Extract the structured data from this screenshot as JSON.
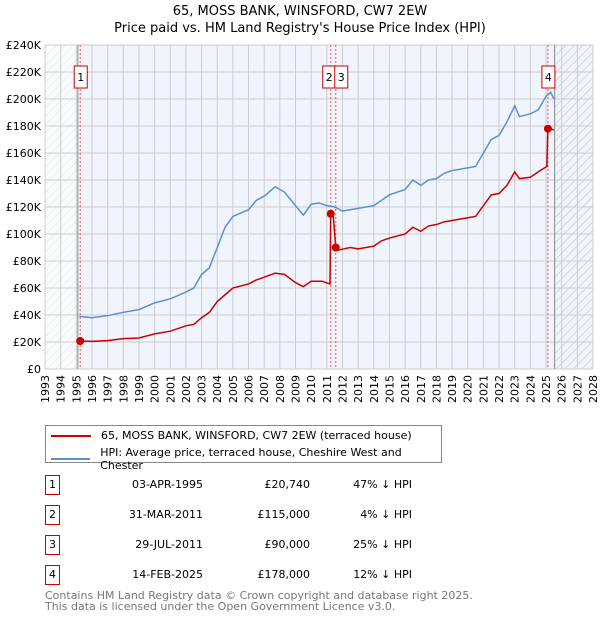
{
  "chart_data": {
    "type": "line",
    "title": "65, MOSS BANK, WINSFORD, CW7 2EW",
    "subtitle": "Price paid vs. HM Land Registry's House Price Index (HPI)",
    "xlim": [
      1993,
      2028
    ],
    "ylim": [
      0,
      240000
    ],
    "x_ticks": [
      "1993",
      "1994",
      "1995",
      "1996",
      "1997",
      "1998",
      "1999",
      "2000",
      "2001",
      "2002",
      "2003",
      "2004",
      "2005",
      "2006",
      "2007",
      "2008",
      "2009",
      "2010",
      "2011",
      "2012",
      "2013",
      "2014",
      "2015",
      "2016",
      "2017",
      "2018",
      "2019",
      "2020",
      "2021",
      "2022",
      "2023",
      "2024",
      "2025",
      "2026",
      "2027",
      "2028"
    ],
    "y_ticks": [
      {
        "v": 0,
        "l": "£0"
      },
      {
        "v": 20000,
        "l": "£20K"
      },
      {
        "v": 40000,
        "l": "£40K"
      },
      {
        "v": 60000,
        "l": "£60K"
      },
      {
        "v": 80000,
        "l": "£80K"
      },
      {
        "v": 100000,
        "l": "£100K"
      },
      {
        "v": 120000,
        "l": "£120K"
      },
      {
        "v": 140000,
        "l": "£140K"
      },
      {
        "v": 160000,
        "l": "£160K"
      },
      {
        "v": 180000,
        "l": "£180K"
      },
      {
        "v": 200000,
        "l": "£200K"
      },
      {
        "v": 220000,
        "l": "£220K"
      },
      {
        "v": 240000,
        "l": "£240K"
      }
    ],
    "grid": true,
    "hatched_ranges": [
      [
        1993,
        1995.1
      ],
      [
        2025.55,
        2028
      ]
    ],
    "series": [
      {
        "name": "65, MOSS BANK, WINSFORD, CW7 2EW (terraced house)",
        "color": "#cc0000",
        "points": [
          [
            1995.25,
            20740
          ],
          [
            1996,
            20500
          ],
          [
            1997,
            21000
          ],
          [
            1998,
            22500
          ],
          [
            1999,
            23000
          ],
          [
            2000,
            26000
          ],
          [
            2001,
            28000
          ],
          [
            2002,
            32000
          ],
          [
            2002.5,
            33000
          ],
          [
            2003,
            38000
          ],
          [
            2003.5,
            42000
          ],
          [
            2004,
            50000
          ],
          [
            2004.5,
            55000
          ],
          [
            2005,
            60000
          ],
          [
            2006,
            63000
          ],
          [
            2006.5,
            66000
          ],
          [
            2007,
            68000
          ],
          [
            2007.7,
            71000
          ],
          [
            2008.3,
            70000
          ],
          [
            2009,
            64000
          ],
          [
            2009.5,
            61000
          ],
          [
            2010,
            65000
          ],
          [
            2010.7,
            65000
          ],
          [
            2011.2,
            63000
          ],
          [
            2011.25,
            115000
          ],
          [
            2011.4,
            115000
          ],
          [
            2011.57,
            90000
          ],
          [
            2011.7,
            88000
          ],
          [
            2012.5,
            90000
          ],
          [
            2013,
            89000
          ],
          [
            2014,
            91000
          ],
          [
            2014.5,
            95000
          ],
          [
            2015,
            97000
          ],
          [
            2016,
            100000
          ],
          [
            2016.5,
            105000
          ],
          [
            2017,
            102000
          ],
          [
            2017.5,
            106000
          ],
          [
            2018,
            107000
          ],
          [
            2018.5,
            109000
          ],
          [
            2019,
            110000
          ],
          [
            2019.5,
            111000
          ],
          [
            2020,
            112000
          ],
          [
            2020.5,
            113000
          ],
          [
            2021,
            121000
          ],
          [
            2021.5,
            129000
          ],
          [
            2022,
            130000
          ],
          [
            2022.5,
            136000
          ],
          [
            2023,
            146000
          ],
          [
            2023.3,
            141000
          ],
          [
            2024,
            142000
          ],
          [
            2024.5,
            146000
          ],
          [
            2025.05,
            150000
          ],
          [
            2025.12,
            178000
          ],
          [
            2025.3,
            178000
          ],
          [
            2025.5,
            177000
          ]
        ]
      },
      {
        "name": "HPI: Average price, terraced house, Cheshire West and Chester",
        "color": "#5b8fd4",
        "points": [
          [
            1995.2,
            39000
          ],
          [
            1996,
            38000
          ],
          [
            1997,
            39500
          ],
          [
            1998,
            42000
          ],
          [
            1999,
            44000
          ],
          [
            2000,
            49000
          ],
          [
            2001,
            52000
          ],
          [
            2002,
            57000
          ],
          [
            2002.5,
            60000
          ],
          [
            2003,
            70000
          ],
          [
            2003.5,
            75000
          ],
          [
            2004,
            90000
          ],
          [
            2004.5,
            105000
          ],
          [
            2005,
            113000
          ],
          [
            2006,
            118000
          ],
          [
            2006.5,
            125000
          ],
          [
            2007,
            128000
          ],
          [
            2007.7,
            135000
          ],
          [
            2008.3,
            131000
          ],
          [
            2009,
            121000
          ],
          [
            2009.5,
            114000
          ],
          [
            2010,
            122000
          ],
          [
            2010.5,
            123000
          ],
          [
            2011,
            121000
          ],
          [
            2011.5,
            120000
          ],
          [
            2012,
            117000
          ],
          [
            2013,
            119000
          ],
          [
            2014,
            121000
          ],
          [
            2014.5,
            125000
          ],
          [
            2015,
            129000
          ],
          [
            2016,
            133000
          ],
          [
            2016.5,
            140000
          ],
          [
            2017,
            136000
          ],
          [
            2017.5,
            140000
          ],
          [
            2018,
            141000
          ],
          [
            2018.5,
            145000
          ],
          [
            2019,
            147000
          ],
          [
            2019.5,
            148000
          ],
          [
            2020,
            149000
          ],
          [
            2020.5,
            150000
          ],
          [
            2021,
            160000
          ],
          [
            2021.5,
            170000
          ],
          [
            2022,
            173000
          ],
          [
            2022.5,
            183000
          ],
          [
            2023,
            195000
          ],
          [
            2023.3,
            187000
          ],
          [
            2024,
            189000
          ],
          [
            2024.5,
            192000
          ],
          [
            2025,
            202000
          ],
          [
            2025.3,
            205000
          ],
          [
            2025.5,
            200000
          ]
        ]
      }
    ],
    "sales": [
      {
        "n": "1",
        "date": "03-APR-1995",
        "price": "£20,740",
        "hpi": "47% ↓ HPI",
        "x": 1995.25,
        "y": 20740
      },
      {
        "n": "2",
        "date": "31-MAR-2011",
        "price": "£115,000",
        "hpi": "4% ↓ HPI",
        "x": 2011.25,
        "y": 115000
      },
      {
        "n": "3",
        "date": "29-JUL-2011",
        "price": "£90,000",
        "hpi": "25% ↓ HPI",
        "x": 2011.57,
        "y": 90000
      },
      {
        "n": "4",
        "date": "14-FEB-2025",
        "price": "£178,000",
        "hpi": "12% ↓ HPI",
        "x": 2025.12,
        "y": 178000
      }
    ]
  },
  "footer": {
    "line1": "Contains HM Land Registry data © Crown copyright and database right 2025.",
    "line2": "This data is licensed under the Open Government Licence v3.0."
  }
}
